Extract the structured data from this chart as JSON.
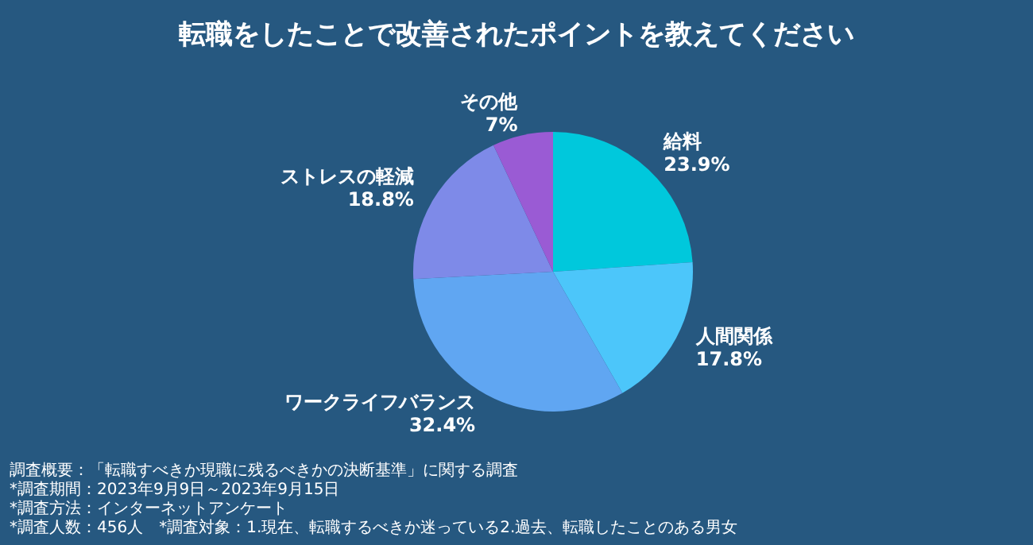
{
  "chart_data": {
    "type": "pie",
    "title": "転職をしたことで改善されたポイントを教えてください",
    "categories": [
      "給料",
      "人間関係",
      "ワークライフバランス",
      "ストレスの軽減",
      "その他"
    ],
    "values": [
      23.9,
      17.8,
      32.4,
      18.8,
      7
    ],
    "value_labels": [
      "23.9%",
      "17.8%",
      "32.4%",
      "18.8%",
      "7%"
    ],
    "colors": [
      "#00c8dc",
      "#4cc6fa",
      "#60a6f2",
      "#7e8ae8",
      "#9a5bd4"
    ],
    "legend": false,
    "annotations": [
      "調査概要：「転職すべきか現職に残るべきかの決断基準」に関する調査",
      "*調査期間：2023年9月9日～2023年9月15日",
      "*調査方法：インターネットアンケート",
      "*調査人数：456人　*調査対象：1.現在、転職するべきか迷っている2.過去、転職したことのある男女"
    ]
  }
}
